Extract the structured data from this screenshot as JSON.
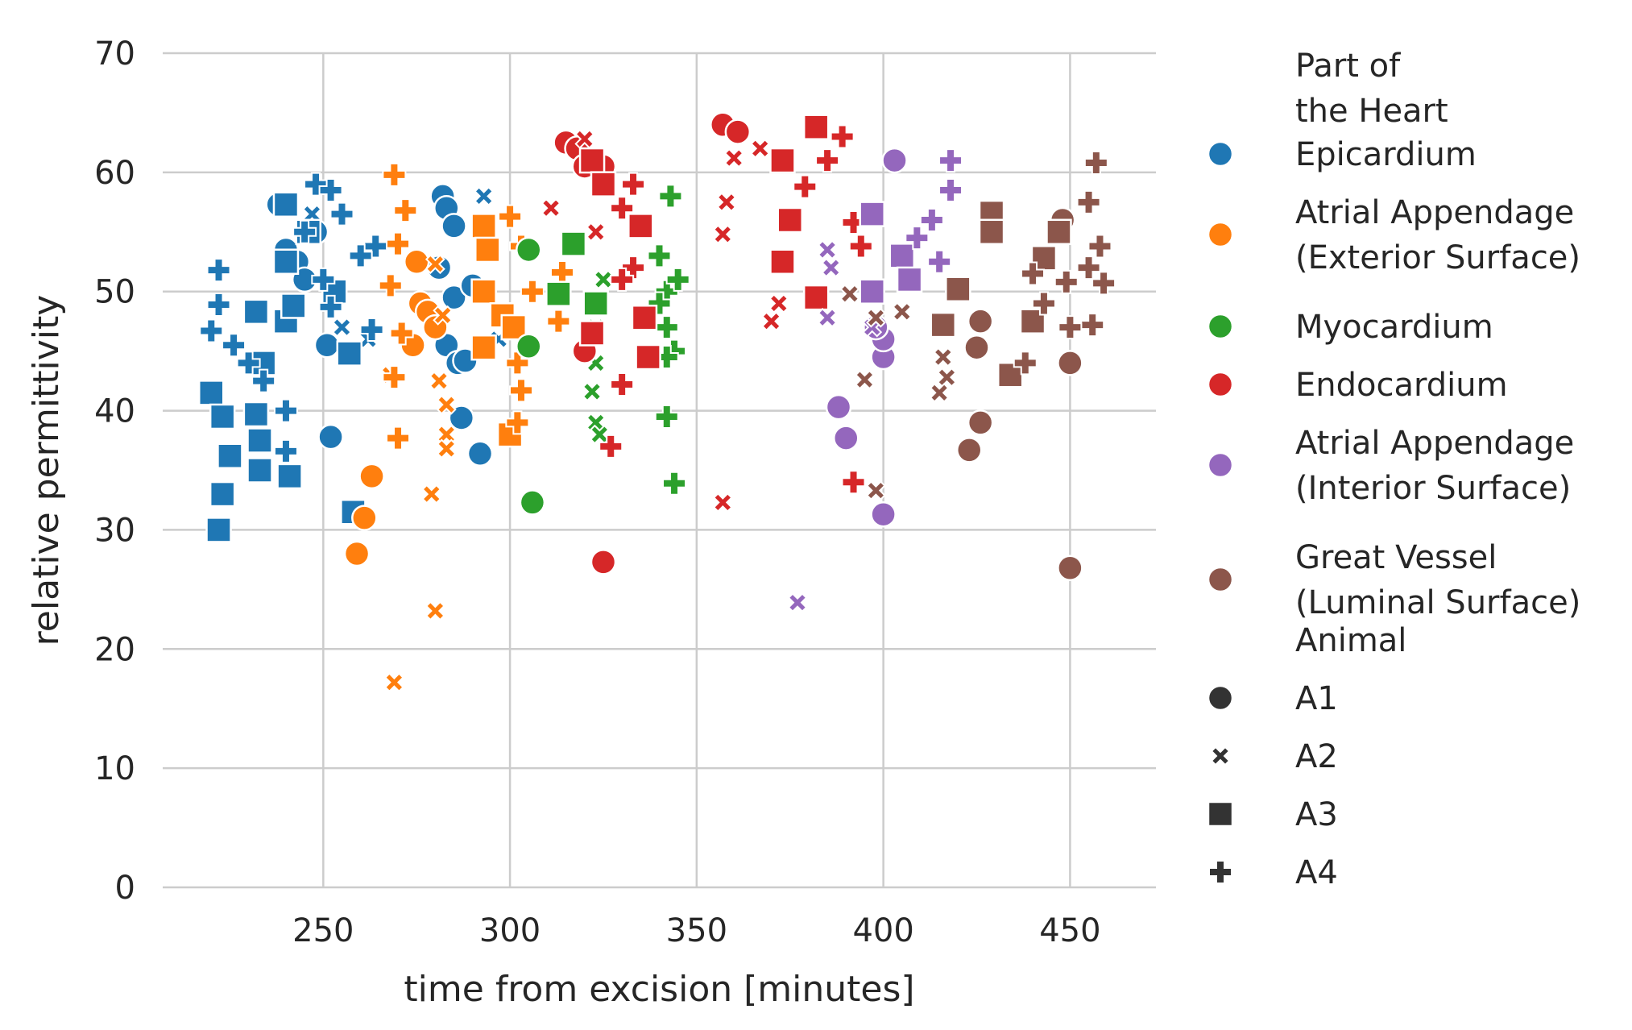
{
  "chart_data": {
    "type": "scatter",
    "title": "",
    "xlabel": "time from excision [minutes]",
    "ylabel": "relative permittivity",
    "xlim": [
      207,
      473
    ],
    "ylim": [
      0,
      70
    ],
    "xticks": [
      250,
      300,
      350,
      400,
      450
    ],
    "yticks": [
      0,
      10,
      20,
      30,
      40,
      50,
      60,
      70
    ],
    "grid": true,
    "legend_position": "right",
    "hue_legend": {
      "title": "Part of the Heart",
      "title_lines": [
        "Part of",
        "the Heart"
      ],
      "entries": [
        {
          "lines": [
            "Epicardium"
          ],
          "color": "#1f77b4"
        },
        {
          "lines": [
            "Atrial Appendage",
            "(Exterior Surface)"
          ],
          "color": "#ff7f0e"
        },
        {
          "lines": [
            "Myocardium"
          ],
          "color": "#2ca02c"
        },
        {
          "lines": [
            "Endocardium"
          ],
          "color": "#d62728"
        },
        {
          "lines": [
            "Atrial Appendage",
            "(Interior Surface)"
          ],
          "color": "#9467bd"
        },
        {
          "lines": [
            "Great Vessel",
            "(Luminal Surface)"
          ],
          "color": "#8c564b"
        }
      ]
    },
    "style_legend": {
      "title": "Animal",
      "entries": [
        {
          "label": "A1",
          "marker": "circle"
        },
        {
          "label": "A2",
          "marker": "x"
        },
        {
          "label": "A3",
          "marker": "square"
        },
        {
          "label": "A4",
          "marker": "plus"
        }
      ]
    },
    "series": [
      {
        "part": "Epicardium",
        "animal": "A1",
        "points": [
          [
            238,
            57.3
          ],
          [
            240,
            53.5
          ],
          [
            243,
            52.5
          ],
          [
            245,
            51
          ],
          [
            248,
            55
          ],
          [
            251,
            45.5
          ],
          [
            252,
            37.8
          ],
          [
            282,
            58
          ],
          [
            283,
            57
          ],
          [
            285,
            55.5
          ],
          [
            285,
            49.5
          ],
          [
            283,
            45.5
          ],
          [
            286,
            44
          ],
          [
            288,
            44.2
          ],
          [
            287,
            39.4
          ],
          [
            292,
            36.4
          ],
          [
            290,
            50.5
          ],
          [
            281,
            52
          ]
        ]
      },
      {
        "part": "Epicardium",
        "animal": "A2",
        "points": [
          [
            293,
            58
          ],
          [
            255,
            47
          ],
          [
            262,
            46
          ],
          [
            247,
            56.5
          ],
          [
            297,
            46
          ]
        ]
      },
      {
        "part": "Epicardium",
        "animal": "A3",
        "points": [
          [
            220,
            41.5
          ],
          [
            223,
            39.5
          ],
          [
            225,
            36.2
          ],
          [
            223,
            33
          ],
          [
            222,
            30
          ],
          [
            232,
            48.3
          ],
          [
            234,
            44
          ],
          [
            232,
            39.7
          ],
          [
            233,
            37.5
          ],
          [
            233,
            35
          ],
          [
            240,
            52.5
          ],
          [
            240,
            47.5
          ],
          [
            242,
            48.8
          ],
          [
            241,
            34.5
          ],
          [
            240,
            57.3
          ],
          [
            246,
            55
          ],
          [
            253,
            50
          ],
          [
            257,
            44.8
          ],
          [
            258,
            31.5
          ]
        ]
      },
      {
        "part": "Epicardium",
        "animal": "A4",
        "points": [
          [
            222,
            51.8
          ],
          [
            222,
            48.9
          ],
          [
            220,
            46.7
          ],
          [
            226,
            45.5
          ],
          [
            230,
            44
          ],
          [
            234,
            42.5
          ],
          [
            240,
            40
          ],
          [
            240,
            36.6
          ],
          [
            248,
            59
          ],
          [
            252,
            58.5
          ],
          [
            245,
            55
          ],
          [
            250,
            51
          ],
          [
            252,
            48.7
          ],
          [
            264,
            53.8
          ],
          [
            263,
            46.8
          ],
          [
            255,
            56.5
          ],
          [
            260,
            53
          ]
        ]
      },
      {
        "part": "Atrial Appendage (Exterior Surface)",
        "animal": "A1",
        "points": [
          [
            263,
            34.5
          ],
          [
            261,
            31
          ],
          [
            259,
            28
          ],
          [
            275,
            52.5
          ],
          [
            276,
            49
          ],
          [
            274,
            45.5
          ],
          [
            278,
            48.3
          ],
          [
            280,
            47
          ]
        ]
      },
      {
        "part": "Atrial Appendage (Exterior Surface)",
        "animal": "A2",
        "points": [
          [
            269,
            17.2
          ],
          [
            280,
            23.2
          ],
          [
            279,
            33
          ],
          [
            283,
            40.5
          ],
          [
            283,
            38
          ],
          [
            283,
            36.8
          ],
          [
            281,
            42.5
          ],
          [
            280,
            52.3
          ],
          [
            268,
            43
          ],
          [
            282,
            48
          ]
        ]
      },
      {
        "part": "Atrial Appendage (Exterior Surface)",
        "animal": "A3",
        "points": [
          [
            293,
            55.5
          ],
          [
            294,
            53.5
          ],
          [
            293,
            50
          ],
          [
            293,
            45.3
          ],
          [
            300,
            38
          ],
          [
            298,
            48
          ],
          [
            301,
            47
          ]
        ]
      },
      {
        "part": "Atrial Appendage (Exterior Surface)",
        "animal": "A4",
        "points": [
          [
            269,
            59.8
          ],
          [
            272,
            56.8
          ],
          [
            270,
            54
          ],
          [
            271,
            46.5
          ],
          [
            268,
            50.5
          ],
          [
            269,
            42.8
          ],
          [
            270,
            37.7
          ],
          [
            300,
            56.3
          ],
          [
            303,
            53.8
          ],
          [
            302,
            44
          ],
          [
            303,
            41.7
          ],
          [
            302,
            39
          ],
          [
            306,
            50
          ],
          [
            313,
            47.5
          ],
          [
            314,
            51.6
          ]
        ]
      },
      {
        "part": "Myocardium",
        "animal": "A1",
        "points": [
          [
            305,
            45.4
          ],
          [
            306,
            32.3
          ],
          [
            305,
            53.5
          ]
        ]
      },
      {
        "part": "Myocardium",
        "animal": "A2",
        "points": [
          [
            323,
            47
          ],
          [
            323,
            44
          ],
          [
            323,
            39
          ],
          [
            324,
            38
          ],
          [
            322,
            41.6
          ],
          [
            325,
            51
          ]
        ]
      },
      {
        "part": "Myocardium",
        "animal": "A3",
        "points": [
          [
            313,
            49.8
          ],
          [
            317,
            54
          ],
          [
            323,
            49
          ]
        ]
      },
      {
        "part": "Myocardium",
        "animal": "A4",
        "points": [
          [
            343,
            58
          ],
          [
            340,
            53
          ],
          [
            342,
            50
          ],
          [
            345,
            51
          ],
          [
            342,
            47
          ],
          [
            344,
            45
          ],
          [
            342,
            44.5
          ],
          [
            342,
            39.5
          ],
          [
            344,
            33.9
          ],
          [
            340,
            49
          ]
        ]
      },
      {
        "part": "Endocardium",
        "animal": "A1",
        "points": [
          [
            315,
            62.5
          ],
          [
            318,
            62
          ],
          [
            320,
            60.5
          ],
          [
            325,
            60.5
          ],
          [
            325,
            27.3
          ],
          [
            357,
            64
          ],
          [
            361,
            63.4
          ],
          [
            320,
            45
          ]
        ]
      },
      {
        "part": "Endocardium",
        "animal": "A2",
        "points": [
          [
            320,
            62.8
          ],
          [
            311,
            57
          ],
          [
            323,
            55
          ],
          [
            357,
            54.8
          ],
          [
            358,
            57.5
          ],
          [
            360,
            61.2
          ],
          [
            367,
            62
          ],
          [
            370,
            47.5
          ],
          [
            372,
            49
          ],
          [
            357,
            32.3
          ]
        ]
      },
      {
        "part": "Endocardium",
        "animal": "A3",
        "points": [
          [
            322,
            61
          ],
          [
            325,
            59
          ],
          [
            322,
            46.5
          ],
          [
            335,
            55.5
          ],
          [
            336,
            47.8
          ],
          [
            337,
            44.5
          ],
          [
            373,
            61
          ],
          [
            375,
            56
          ],
          [
            373,
            52.5
          ],
          [
            382,
            63.8
          ],
          [
            382,
            49.5
          ]
        ]
      },
      {
        "part": "Endocardium",
        "animal": "A4",
        "points": [
          [
            330,
            57
          ],
          [
            333,
            52
          ],
          [
            330,
            51
          ],
          [
            330,
            42.2
          ],
          [
            327,
            37
          ],
          [
            333,
            59
          ],
          [
            385,
            61
          ],
          [
            389,
            63
          ],
          [
            392,
            55.8
          ],
          [
            392,
            34
          ],
          [
            394,
            53.8
          ],
          [
            379,
            58.8
          ]
        ]
      },
      {
        "part": "Atrial Appendage (Interior Surface)",
        "animal": "A1",
        "points": [
          [
            388,
            40.3
          ],
          [
            390,
            37.7
          ],
          [
            400,
            44.5
          ],
          [
            400,
            46
          ],
          [
            400,
            31.3
          ],
          [
            403,
            61
          ],
          [
            398,
            47
          ]
        ]
      },
      {
        "part": "Atrial Appendage (Interior Surface)",
        "animal": "A2",
        "points": [
          [
            377,
            23.9
          ],
          [
            385,
            47.8
          ],
          [
            386,
            52
          ],
          [
            385,
            53.5
          ],
          [
            397,
            47
          ]
        ]
      },
      {
        "part": "Atrial Appendage (Interior Surface)",
        "animal": "A3",
        "points": [
          [
            397,
            56.5
          ],
          [
            397,
            50
          ],
          [
            405,
            53
          ],
          [
            407,
            51
          ]
        ]
      },
      {
        "part": "Atrial Appendage (Interior Surface)",
        "animal": "A4",
        "points": [
          [
            418,
            61
          ],
          [
            418,
            58.5
          ],
          [
            413,
            56
          ],
          [
            409,
            54.5
          ],
          [
            415,
            52.5
          ]
        ]
      },
      {
        "part": "Great Vessel (Luminal Surface)",
        "animal": "A1",
        "points": [
          [
            426,
            47.5
          ],
          [
            425,
            45.3
          ],
          [
            426,
            39
          ],
          [
            423,
            36.7
          ],
          [
            448,
            56
          ],
          [
            450,
            44
          ],
          [
            450,
            26.8
          ]
        ]
      },
      {
        "part": "Great Vessel (Luminal Surface)",
        "animal": "A2",
        "points": [
          [
            391,
            49.8
          ],
          [
            398,
            47.8
          ],
          [
            398,
            33.3
          ],
          [
            395,
            42.6
          ],
          [
            405,
            48.3
          ],
          [
            416,
            44.5
          ],
          [
            417,
            42.8
          ],
          [
            415,
            41.5
          ]
        ]
      },
      {
        "part": "Great Vessel (Luminal Surface)",
        "animal": "A3",
        "points": [
          [
            416,
            47.2
          ],
          [
            420,
            50.2
          ],
          [
            429,
            56.6
          ],
          [
            429,
            55
          ],
          [
            434,
            43
          ],
          [
            447,
            55
          ],
          [
            443,
            52.8
          ],
          [
            440,
            47.5
          ]
        ]
      },
      {
        "part": "Great Vessel (Luminal Surface)",
        "animal": "A4",
        "points": [
          [
            457,
            60.8
          ],
          [
            455,
            57.5
          ],
          [
            458,
            53.8
          ],
          [
            455,
            52
          ],
          [
            459,
            50.7
          ],
          [
            456,
            47.2
          ],
          [
            450,
            47
          ],
          [
            449,
            50.8
          ],
          [
            440,
            51.5
          ],
          [
            443,
            49
          ],
          [
            438,
            44
          ]
        ]
      }
    ]
  }
}
